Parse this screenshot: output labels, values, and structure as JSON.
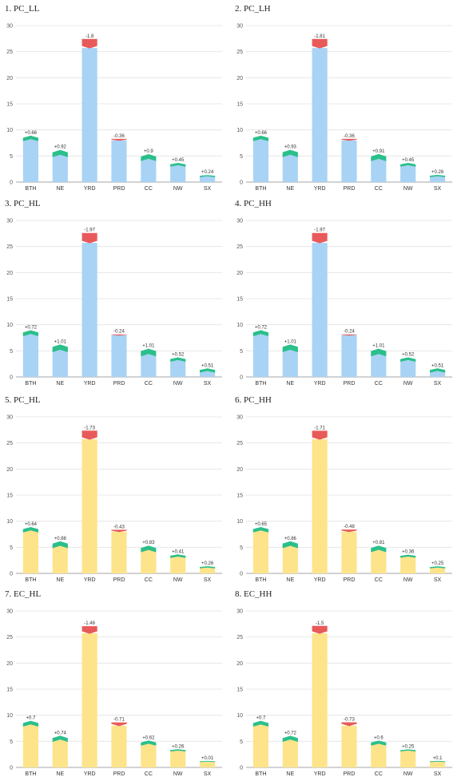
{
  "chart_data": [
    {
      "type": "bar",
      "title": "1. PC_LL",
      "categories": [
        "BTH",
        "NE",
        "YRD",
        "PRD",
        "CC",
        "NW",
        "SX"
      ],
      "values": [
        8.2,
        5.3,
        25.7,
        8.0,
        4.5,
        3.2,
        1.1
      ],
      "changes": [
        0.66,
        0.92,
        -1.8,
        -0.36,
        0.9,
        0.45,
        0.24
      ],
      "change_labels": [
        "+0.66",
        "+0.92",
        "-1.8",
        "-0.36",
        "+0.9",
        "+0.45",
        "+0.24"
      ],
      "ylim": [
        0,
        30
      ],
      "yticks": [
        0,
        5,
        10,
        15,
        20,
        25,
        30
      ],
      "bar_color": "#a8d3f5",
      "grid": true
    },
    {
      "type": "bar",
      "title": "2. PC_LH",
      "categories": [
        "BTH",
        "NE",
        "YRD",
        "PRD",
        "CC",
        "NW",
        "SX"
      ],
      "values": [
        8.2,
        5.3,
        25.7,
        8.0,
        4.5,
        3.2,
        1.1
      ],
      "changes": [
        0.66,
        0.93,
        -1.81,
        -0.36,
        0.91,
        0.45,
        0.26
      ],
      "change_labels": [
        "+0.66",
        "+0.93",
        "-1.81",
        "-0.36",
        "+0.91",
        "+0.45",
        "+0.26"
      ],
      "ylim": [
        0,
        30
      ],
      "yticks": [
        0,
        5,
        10,
        15,
        20,
        25,
        30
      ],
      "bar_color": "#a8d3f5",
      "grid": true
    },
    {
      "type": "bar",
      "title": "3. PC_HL",
      "categories": [
        "BTH",
        "NE",
        "YRD",
        "PRD",
        "CC",
        "NW",
        "SX"
      ],
      "values": [
        8.2,
        5.3,
        25.7,
        8.0,
        4.5,
        3.2,
        1.1
      ],
      "changes": [
        0.72,
        1.01,
        -1.97,
        -0.24,
        1.01,
        0.52,
        0.51
      ],
      "change_labels": [
        "+0.72",
        "+1.01",
        "-1.97",
        "-0.24",
        "+1.01",
        "+0.52",
        "+0.51"
      ],
      "ylim": [
        0,
        30
      ],
      "yticks": [
        0,
        5,
        10,
        15,
        20,
        25,
        30
      ],
      "bar_color": "#a8d3f5",
      "grid": true
    },
    {
      "type": "bar",
      "title": "4. PC_HH",
      "categories": [
        "BTH",
        "NE",
        "YRD",
        "PRD",
        "CC",
        "NW",
        "SX"
      ],
      "values": [
        8.2,
        5.3,
        25.7,
        8.0,
        4.5,
        3.2,
        1.1
      ],
      "changes": [
        0.72,
        1.01,
        -1.97,
        -0.24,
        1.01,
        0.52,
        0.51
      ],
      "change_labels": [
        "+0.72",
        "+1.01",
        "-1.97",
        "-0.24",
        "+1.01",
        "+0.52",
        "+0.51"
      ],
      "ylim": [
        0,
        30
      ],
      "yticks": [
        0,
        5,
        10,
        15,
        20,
        25,
        30
      ],
      "bar_color": "#a8d3f5",
      "grid": true
    },
    {
      "type": "bar",
      "title": "5. PC_HL",
      "categories": [
        "BTH",
        "NE",
        "YRD",
        "PRD",
        "CC",
        "NW",
        "SX"
      ],
      "values": [
        8.2,
        5.3,
        25.7,
        8.0,
        4.5,
        3.2,
        1.1
      ],
      "changes": [
        0.64,
        0.88,
        -1.73,
        -0.43,
        0.83,
        0.41,
        0.26
      ],
      "change_labels": [
        "+0.64",
        "+0.88",
        "-1.73",
        "-0.43",
        "+0.83",
        "+0.41",
        "+0.26"
      ],
      "ylim": [
        0,
        30
      ],
      "yticks": [
        0,
        5,
        10,
        15,
        20,
        25,
        30
      ],
      "bar_color": "#fde48a",
      "grid": true
    },
    {
      "type": "bar",
      "title": "6. PC_HH",
      "categories": [
        "BTH",
        "NE",
        "YRD",
        "PRD",
        "CC",
        "NW",
        "SX"
      ],
      "values": [
        8.2,
        5.3,
        25.7,
        8.0,
        4.5,
        3.2,
        1.1
      ],
      "changes": [
        0.65,
        0.86,
        -1.71,
        -0.48,
        0.81,
        0.36,
        0.25
      ],
      "change_labels": [
        "+0.65",
        "+0.86",
        "-1.71",
        "-0.48",
        "+0.81",
        "+0.36",
        "+0.25"
      ],
      "ylim": [
        0,
        30
      ],
      "yticks": [
        0,
        5,
        10,
        15,
        20,
        25,
        30
      ],
      "bar_color": "#fde48a",
      "grid": true
    },
    {
      "type": "bar",
      "title": "7. EC_HL",
      "categories": [
        "BTH",
        "NE",
        "YRD",
        "PRD",
        "CC",
        "NW",
        "SX"
      ],
      "values": [
        8.2,
        5.3,
        25.7,
        8.0,
        4.5,
        3.2,
        1.1
      ],
      "changes": [
        0.7,
        0.74,
        -1.46,
        -0.71,
        0.62,
        0.26,
        0.01
      ],
      "change_labels": [
        "+0.7",
        "+0.74",
        "-1.46",
        "-0.71",
        "+0.62",
        "+0.26",
        "+0.01"
      ],
      "ylim": [
        0,
        30
      ],
      "yticks": [
        0,
        5,
        10,
        15,
        20,
        25,
        30
      ],
      "bar_color": "#fde48a",
      "grid": true
    },
    {
      "type": "bar",
      "title": "8. EC_HH",
      "categories": [
        "BTH",
        "NE",
        "YRD",
        "PRD",
        "CC",
        "NW",
        "SX"
      ],
      "values": [
        8.2,
        5.3,
        25.7,
        8.0,
        4.5,
        3.2,
        1.1
      ],
      "changes": [
        0.7,
        0.72,
        -1.5,
        -0.73,
        0.6,
        0.25,
        0.1
      ],
      "change_labels": [
        "+0.7",
        "+0.72",
        "-1.5",
        "-0.73",
        "+0.6",
        "+0.25",
        "+0.1"
      ],
      "ylim": [
        0,
        30
      ],
      "yticks": [
        0,
        5,
        10,
        15,
        20,
        25,
        30
      ],
      "bar_color": "#fde48a",
      "grid": true
    }
  ],
  "colors": {
    "increase": "#2bbf8a",
    "decrease": "#e85a5a"
  }
}
